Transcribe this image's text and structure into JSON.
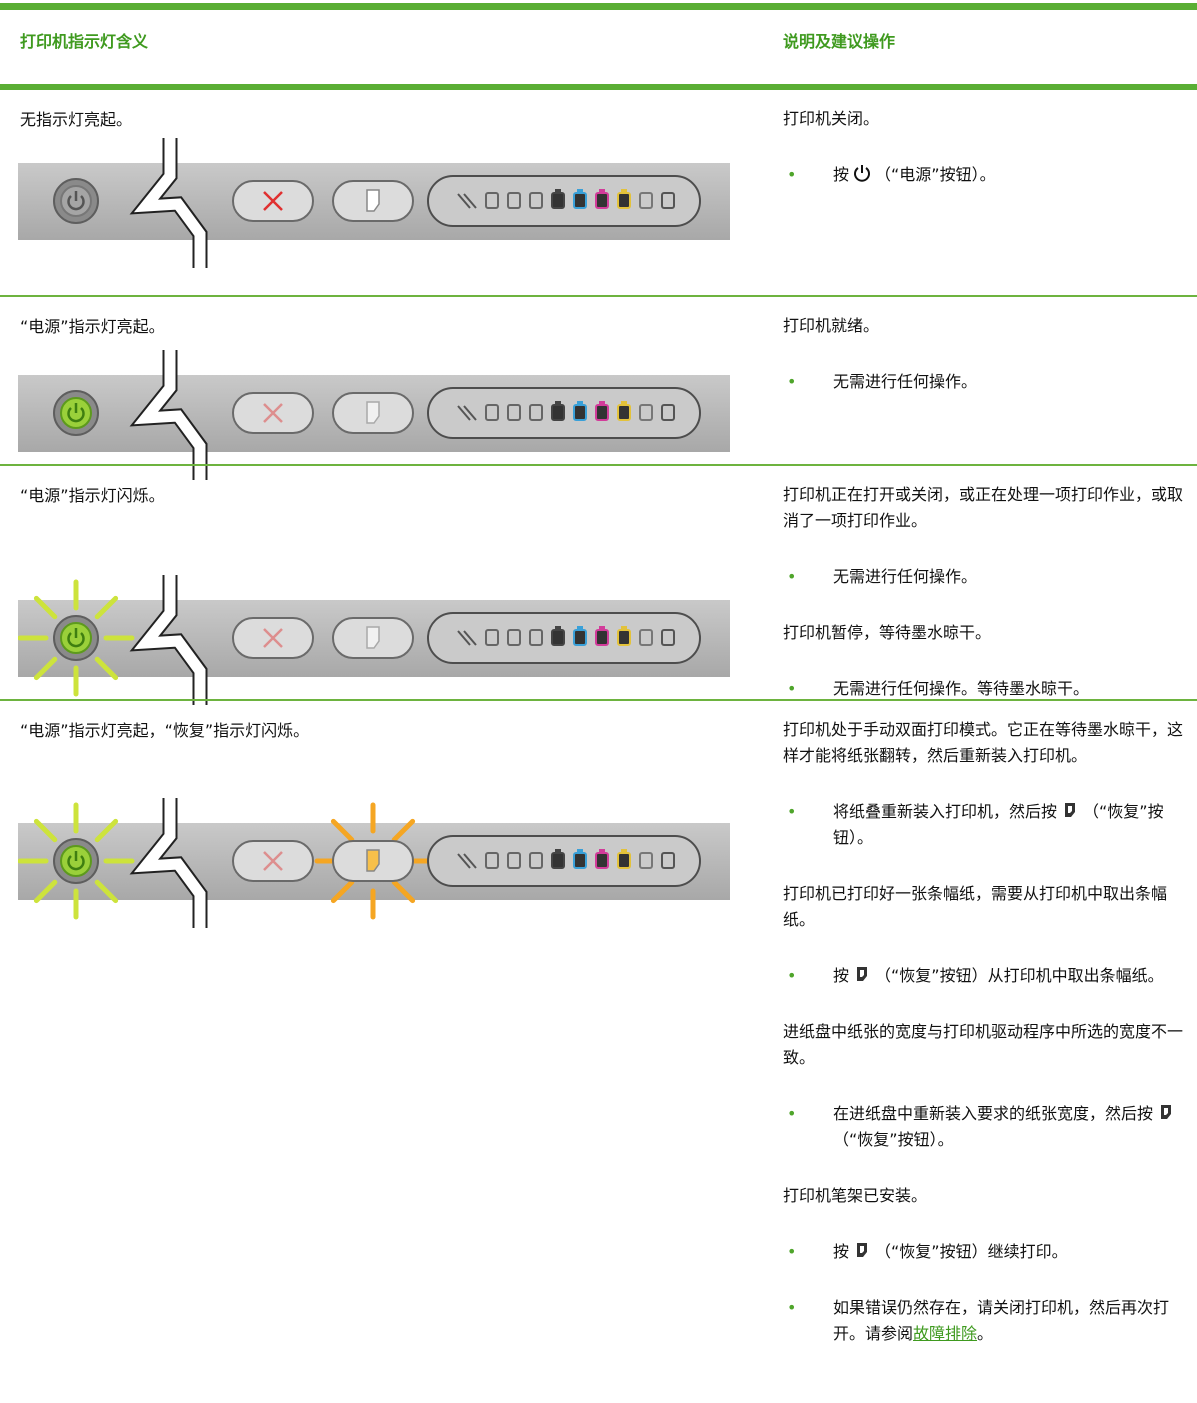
{
  "header": {
    "indicator": "打印机指示灯含义",
    "explanation": "说明及建议操作"
  },
  "rows": [
    {
      "indicator": "无指示灯亮起。",
      "explanation": [
        {
          "type": "text",
          "text": "打印机关闭。"
        },
        {
          "type": "bullet",
          "before": "按",
          "icon": "power",
          "after": "（“电源”按钮）。"
        }
      ]
    },
    {
      "indicator": "“电源”指示灯亮起。",
      "explanation": [
        {
          "type": "text",
          "text": "打印机就绪。"
        },
        {
          "type": "bullet",
          "text": "无需进行任何操作。"
        }
      ]
    },
    {
      "indicator": "“电源”指示灯闪烁。",
      "explanation": [
        {
          "type": "text",
          "text": "打印机正在打开或关闭，或正在处理一项打印作业，或取消了一项打印作业。"
        },
        {
          "type": "bullet",
          "text": "无需进行任何操作。"
        },
        {
          "type": "text",
          "text": "打印机暂停，等待墨水晾干。"
        },
        {
          "type": "bullet",
          "text": "无需进行任何操作。等待墨水晾干。"
        }
      ]
    },
    {
      "indicator": "“电源”指示灯亮起，“恢复”指示灯闪烁。",
      "explanation": [
        {
          "type": "text",
          "text": "打印机处于手动双面打印模式。它正在等待墨水晾干，这样才能将纸张翻转，然后重新装入打印机。"
        },
        {
          "type": "bullet",
          "before": "将纸叠重新装入打印机，然后按",
          "icon": "resume",
          "after": "（“恢复”按钮）。"
        },
        {
          "type": "text",
          "text": "打印机已打印好一张条幅纸，需要从打印机中取出条幅纸。"
        },
        {
          "type": "bullet",
          "before": "按",
          "icon": "resume",
          "after": "（“恢复”按钮）从打印机中取出条幅纸。"
        },
        {
          "type": "text",
          "text": "进纸盘中纸张的宽度与打印机驱动程序中所选的宽度不一致。"
        },
        {
          "type": "bullet",
          "before": "在进纸盘中重新装入要求的纸张宽度，然后按",
          "icon": "resume",
          "after": "（“恢复”按钮）。"
        },
        {
          "type": "text",
          "text": "打印机笔架已安装。"
        },
        {
          "type": "bullet",
          "before": "按",
          "icon": "resume",
          "after": "（“恢复”按钮）继续打印。"
        },
        {
          "type": "bullet",
          "text": "如果错误仍然存在，请关闭打印机，然后再次打开。请参阅",
          "link": "故障排除",
          "after": "。"
        }
      ]
    }
  ]
}
